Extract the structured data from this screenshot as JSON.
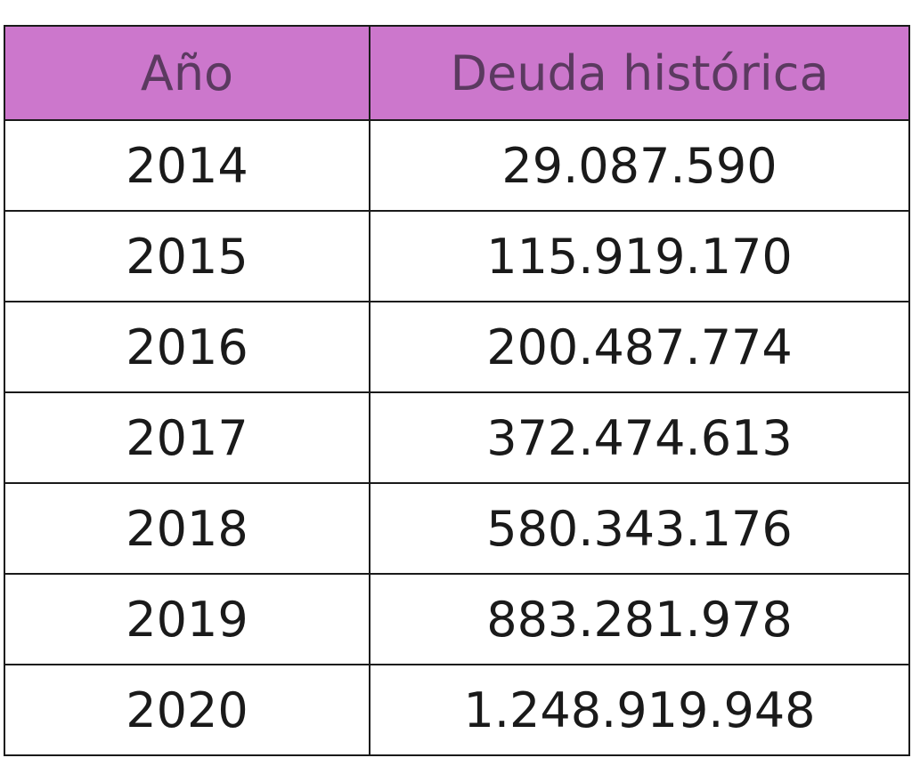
{
  "chart_data": {
    "type": "table",
    "columns": [
      "Año",
      "Deuda histórica"
    ],
    "rows": [
      [
        "2014",
        "29.087.590"
      ],
      [
        "2015",
        "115.919.170"
      ],
      [
        "2016",
        "200.487.774"
      ],
      [
        "2017",
        "372.474.613"
      ],
      [
        "2018",
        "580.343.176"
      ],
      [
        "2019",
        "883.281.978"
      ],
      [
        "2020",
        "1.248.919.948"
      ]
    ]
  },
  "colors": {
    "header_background": "#cc77cc",
    "header_text": "#5b3a60",
    "cell_text": "#1a1a1a",
    "border": "#1a1a1a"
  }
}
